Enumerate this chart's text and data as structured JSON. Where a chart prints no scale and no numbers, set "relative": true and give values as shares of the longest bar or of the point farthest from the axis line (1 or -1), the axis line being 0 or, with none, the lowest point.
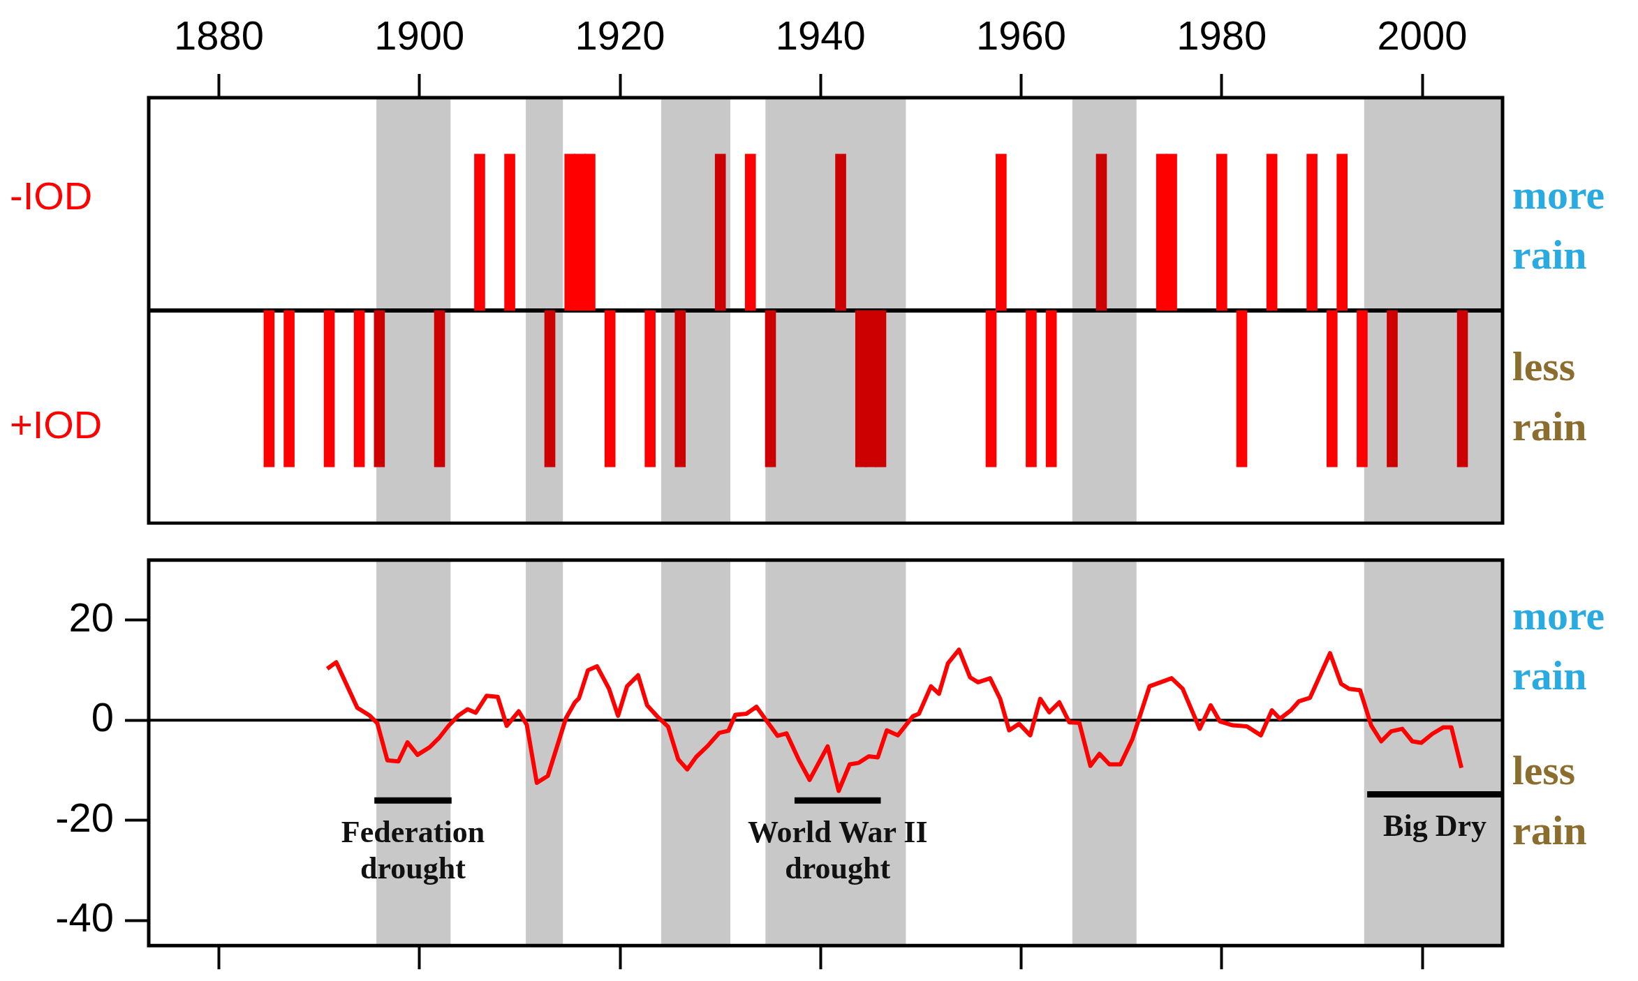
{
  "chart_data": [
    {
      "type": "bar",
      "relative": true,
      "tick_labels": "x",
      "xlim": [
        1873,
        2008
      ],
      "xticks": [
        1880,
        1900,
        1920,
        1940,
        1960,
        1980,
        2000
      ],
      "bands": [
        {
          "axis": "x",
          "from": 1895.7,
          "to": 1903.1,
          "color": "#c8c8c8"
        },
        {
          "axis": "x",
          "from": 1910.6,
          "to": 1914.3,
          "color": "#c8c8c8"
        },
        {
          "axis": "x",
          "from": 1924.1,
          "to": 1931,
          "color": "#c8c8c8"
        },
        {
          "axis": "x",
          "from": 1934.5,
          "to": 1948.5,
          "color": "#c8c8c8"
        },
        {
          "axis": "x",
          "from": 1965.1,
          "to": 1971.5,
          "color": "#c8c8c8"
        },
        {
          "axis": "x",
          "from": 1994.2,
          "to": 2008,
          "color": "#c8c8c8"
        }
      ],
      "series": [
        {
          "x": [
            1885,
            1887,
            1891,
            1894,
            1896,
            1902,
            1906,
            1909,
            1913,
            1915,
            1916,
            1917,
            1919,
            1923,
            1926,
            1930,
            1933,
            1935,
            1942,
            1944,
            1945,
            1946,
            1957,
            1958,
            1961,
            1963,
            1968,
            1974,
            1975,
            1980,
            1982,
            1985,
            1989,
            1991,
            1992,
            1994,
            1997,
            2004
          ],
          "values": [
            -1,
            -1,
            -1,
            -1,
            -1,
            -1,
            1,
            1,
            -1,
            1,
            1,
            1,
            -1,
            -1,
            -1,
            1,
            1,
            -1,
            1,
            -1,
            -1,
            -1,
            -1,
            1,
            -1,
            -1,
            1,
            1,
            1,
            1,
            -1,
            1,
            1,
            -1,
            1,
            -1,
            -1,
            -1
          ],
          "colors": [
            "#ff0000",
            "#ff0000",
            "#ff0000",
            "#ff0000",
            "#cc0000",
            "#cc0000",
            "#ff0000",
            "#ff0000",
            "#cc0000",
            "#ff0000",
            "#ff0000",
            "#ff0000",
            "#ff0000",
            "#ff0000",
            "#cc0000",
            "#cc0000",
            "#ff0000",
            "#cc0000",
            "#cc0000",
            "#cc0000",
            "#cc0000",
            "#cc0000",
            "#ff0000",
            "#ff0000",
            "#ff0000",
            "#ff0000",
            "#cc0000",
            "#ff0000",
            "#ff0000",
            "#ff0000",
            "#ff0000",
            "#ff0000",
            "#ff0000",
            "#ff0000",
            "#ff0000",
            "#ff0000",
            "#cc0000",
            "#cc0000"
          ]
        }
      ],
      "annotations": [
        "-IOD",
        "+IOD",
        "more rain",
        "less rain"
      ]
    },
    {
      "type": "line",
      "tick_labels": "y",
      "xlim": [
        1873,
        2008
      ],
      "ylim": [
        -45,
        32
      ],
      "xticks": [
        {
          "value": 1880,
          "label": null
        },
        {
          "value": 1900,
          "label": null
        },
        {
          "value": 1920,
          "label": null
        },
        {
          "value": 1940,
          "label": null
        },
        {
          "value": 1960,
          "label": null
        },
        {
          "value": 1980,
          "label": null
        },
        {
          "value": 2000,
          "label": null
        }
      ],
      "yticks": [
        -40,
        -20,
        0,
        20
      ],
      "bands": [
        {
          "axis": "x",
          "from": 1895.7,
          "to": 1903.1,
          "color": "#c8c8c8"
        },
        {
          "axis": "x",
          "from": 1910.6,
          "to": 1914.3,
          "color": "#c8c8c8"
        },
        {
          "axis": "x",
          "from": 1924.1,
          "to": 1931,
          "color": "#c8c8c8"
        },
        {
          "axis": "x",
          "from": 1934.5,
          "to": 1948.5,
          "color": "#c8c8c8"
        },
        {
          "axis": "x",
          "from": 1965.1,
          "to": 1971.5,
          "color": "#c8c8c8"
        },
        {
          "axis": "x",
          "from": 1994.2,
          "to": 2008,
          "color": "#c8c8c8"
        }
      ],
      "ref_lines": [
        {
          "axis": "y",
          "value": 0,
          "color": "#000000"
        }
      ],
      "marker": "none",
      "line_style": "solid",
      "series": [
        {
          "color": "#ff0000",
          "x": [
            1890.8,
            1891.7,
            1893.8,
            1895.0,
            1895.8,
            1896.8,
            1897.9,
            1898.8,
            1899.8,
            1901.0,
            1902.0,
            1902.9,
            1903.9,
            1904.8,
            1905.6,
            1906.7,
            1907.8,
            1908.7,
            1909.9,
            1910.7,
            1911.7,
            1912.8,
            1914.6,
            1915.5,
            1915.9,
            1916.8,
            1917.7,
            1918.9,
            1919.8,
            1920.7,
            1921.8,
            1922.7,
            1923.7,
            1924.8,
            1925.8,
            1926.7,
            1927.6,
            1928.7,
            1929.9,
            1930.8,
            1931.5,
            1932.6,
            1933.6,
            1935.7,
            1936.6,
            1937.8,
            1938.9,
            1940.7,
            1941.8,
            1942.9,
            1943.8,
            1944.8,
            1945.7,
            1946.6,
            1947.7,
            1949.2,
            1949.8,
            1951.0,
            1951.8,
            1952.7,
            1953.8,
            1954.9,
            1955.7,
            1956.9,
            1957.9,
            1958.8,
            1959.8,
            1960.9,
            1961.9,
            1962.8,
            1963.8,
            1964.8,
            1965.8,
            1966.9,
            1967.8,
            1968.8,
            1969.9,
            1971.1,
            1972.8,
            1973.9,
            1975.0,
            1976.1,
            1977.8,
            1978.9,
            1979.8,
            1981.1,
            1982.5,
            1983.9,
            1985.0,
            1985.8,
            1986.9,
            1987.7,
            1988.8,
            1990.8,
            1991.9,
            1992.7,
            1993.8,
            1994.9,
            1995.9,
            1996.9,
            1998.0,
            1999.0,
            1999.9,
            2001.0,
            2002.1,
            2002.9,
            2003.9
          ],
          "values": [
            10.3,
            11.6,
            2.5,
            1.0,
            -0.6,
            -8.0,
            -8.2,
            -4.4,
            -6.9,
            -5.4,
            -3.4,
            -1.1,
            1.0,
            2.2,
            1.5,
            4.9,
            4.7,
            -1.1,
            1.8,
            -0.9,
            -12.5,
            -11.1,
            0.4,
            3.6,
            4.4,
            10.0,
            10.8,
            6.3,
            0.9,
            6.8,
            9.0,
            3.0,
            0.8,
            -1.3,
            -7.8,
            -9.8,
            -7.3,
            -5.2,
            -2.5,
            -2.1,
            1.1,
            1.3,
            2.7,
            -3.1,
            -2.6,
            -7.8,
            -11.9,
            -5.2,
            -14.1,
            -8.8,
            -8.5,
            -7.2,
            -7.4,
            -2.0,
            -3.0,
            0.8,
            1.3,
            6.8,
            5.3,
            11.4,
            14.1,
            8.6,
            7.6,
            8.4,
            4.3,
            -2.0,
            -0.7,
            -3.0,
            4.3,
            1.6,
            3.6,
            -0.4,
            -0.5,
            -9.1,
            -6.7,
            -8.8,
            -8.8,
            -3.7,
            6.8,
            7.6,
            8.4,
            6.3,
            -1.7,
            3.0,
            -0.2,
            -1.0,
            -1.2,
            -3.0,
            2.0,
            0.3,
            2.0,
            3.8,
            4.5,
            13.4,
            7.3,
            6.3,
            6.0,
            -1.0,
            -4.2,
            -2.2,
            -1.7,
            -4.2,
            -4.5,
            -2.7,
            -1.4,
            -1.4,
            -9.5
          ]
        },
        {
          "color": "#000000",
          "x": [
            1895.5,
            1903.2
          ],
          "values": [
            -16,
            -16
          ]
        },
        {
          "color": "#000000",
          "x": [
            1937.4,
            1946.0
          ],
          "values": [
            -16,
            -16
          ]
        },
        {
          "color": "#000000",
          "x": [
            1994.5,
            2008
          ],
          "values": [
            -14.8,
            -14.8
          ]
        }
      ],
      "annotations": [
        {
          "text": "Federation\ndrought",
          "x": 1899.35,
          "y": -16
        },
        {
          "text": "World War II\ndrought",
          "x": 1941.7,
          "y": -16
        },
        {
          "text": "Big Dry",
          "x": 2001.25,
          "y": -14.8
        },
        "more rain",
        "less rain"
      ]
    }
  ]
}
